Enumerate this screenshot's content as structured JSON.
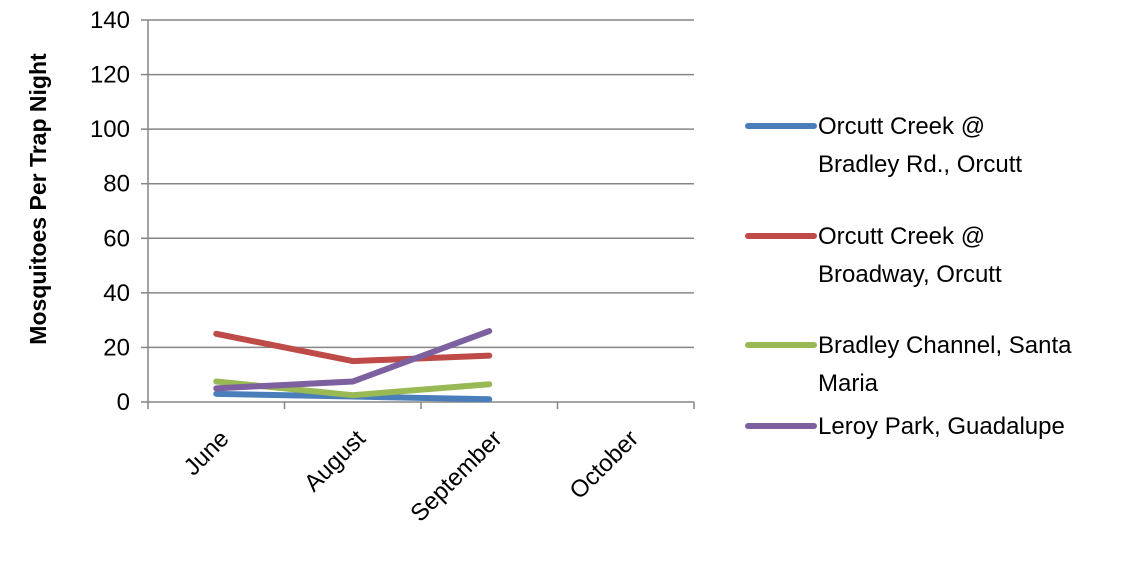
{
  "chart_data": {
    "type": "line",
    "title": "",
    "xlabel": "",
    "ylabel": "Mosquitoes Per Trap Night",
    "categories": [
      "June",
      "August",
      "September",
      "October"
    ],
    "ylim": [
      0,
      140
    ],
    "yticks": [
      0,
      20,
      40,
      60,
      80,
      100,
      120,
      140
    ],
    "grid": true,
    "legend_position": "right",
    "series": [
      {
        "name": "Orcutt Creek @ Bradley Rd., Orcutt",
        "color": "#4a7ebb",
        "values": [
          3,
          2,
          1,
          null
        ]
      },
      {
        "name": "Orcutt Creek @ Broadway, Orcutt",
        "color": "#be4b48",
        "values": [
          25,
          15,
          17,
          null
        ]
      },
      {
        "name": "Bradley Channel, Santa Maria",
        "color": "#98b954",
        "values": [
          7.5,
          2.5,
          6.5,
          null
        ]
      },
      {
        "name": "Leroy Park, Guadalupe",
        "color": "#7d60a0",
        "values": [
          5,
          7.5,
          26,
          null
        ]
      }
    ]
  }
}
